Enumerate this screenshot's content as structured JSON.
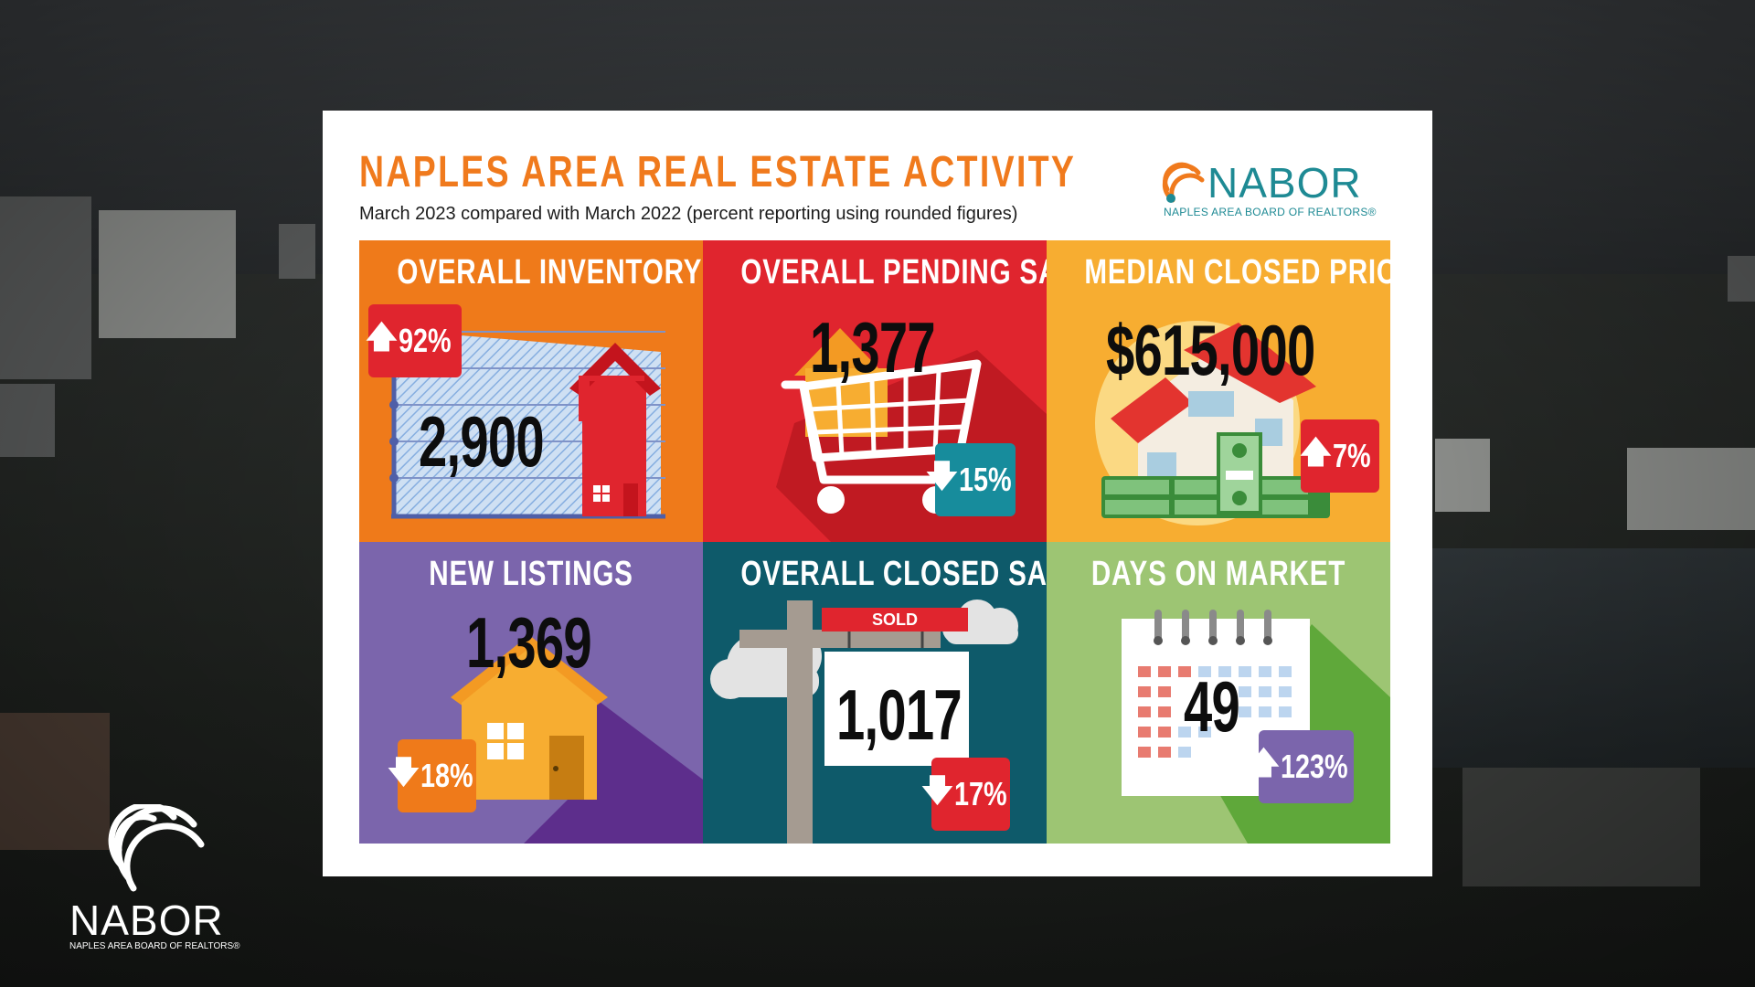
{
  "title": "NAPLES AREA REAL ESTATE ACTIVITY",
  "subtitle": "March 2023 compared with March 2022 (percent reporting using rounded figures)",
  "brand": {
    "name": "NABOR",
    "tagline": "NAPLES AREA BOARD OF REALTORS®"
  },
  "colors": {
    "title": "#f07a1d",
    "inventory": "#ef7a1a",
    "pending": "#e0252e",
    "price": "#f7ad31",
    "listings": "#7b65ac",
    "closed": "#0e5a6a",
    "days": "#9dc573",
    "brand": "#1e8a94"
  },
  "tiles": [
    {
      "key": "inventory",
      "label": "OVERALL INVENTORY",
      "value": "2,900",
      "change": "92%",
      "direction": "up",
      "icon": "house-chart-icon"
    },
    {
      "key": "pending",
      "label": "OVERALL PENDING SALES",
      "value": "1,377",
      "change": "15%",
      "direction": "down",
      "icon": "shopping-cart-icon"
    },
    {
      "key": "price",
      "label": "MEDIAN CLOSED PRICE",
      "value": "$615,000",
      "change": "7%",
      "direction": "up",
      "icon": "house-money-icon"
    },
    {
      "key": "listings",
      "label": "NEW LISTINGS",
      "value": "1,369",
      "change": "18%",
      "direction": "down",
      "icon": "house-icon"
    },
    {
      "key": "closed",
      "label": "OVERALL CLOSED SALES",
      "value": "1,017",
      "change": "17%",
      "direction": "down",
      "icon": "sold-sign-icon",
      "sign_text": "SOLD"
    },
    {
      "key": "days",
      "label": "DAYS ON MARKET",
      "value": "49",
      "change": "123%",
      "direction": "up",
      "icon": "calendar-icon"
    }
  ],
  "arrows": {
    "up": "🡅",
    "down": "🡇"
  }
}
